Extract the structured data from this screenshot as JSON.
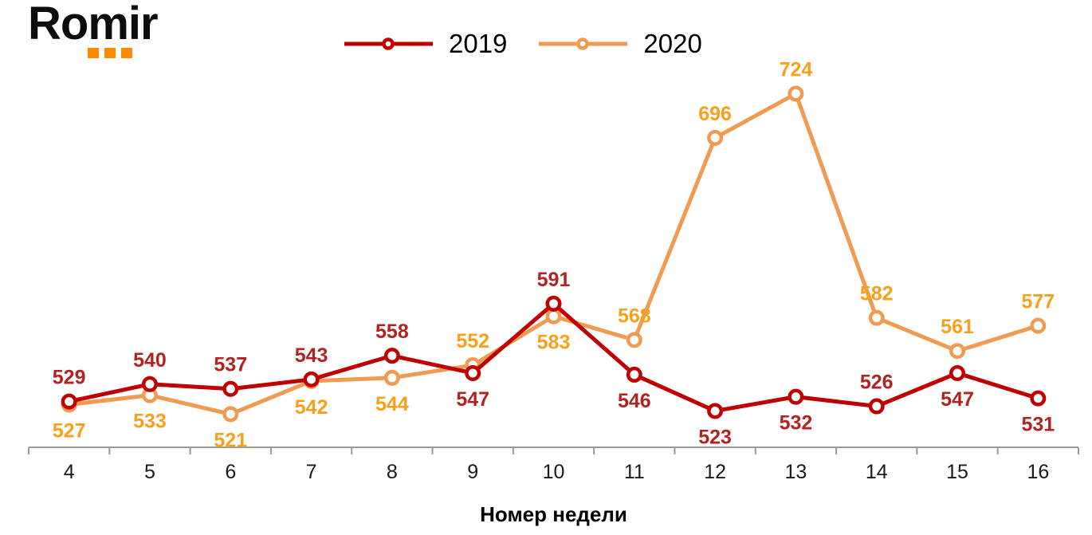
{
  "logo": {
    "text": "Romir",
    "dot_color": "#ff8a00"
  },
  "legend": [
    {
      "label": "2019",
      "line_color": "#C00000"
    },
    {
      "label": "2020",
      "line_color": "#F19A52"
    }
  ],
  "chart_data": {
    "type": "line",
    "title": "",
    "xlabel": "Номер недели",
    "ylabel": "",
    "categories": [
      4,
      5,
      6,
      7,
      8,
      9,
      10,
      11,
      12,
      13,
      14,
      15,
      16
    ],
    "series": [
      {
        "name": "2019",
        "color": "#C00000",
        "label_color": "#B22222",
        "values": [
          529,
          540,
          537,
          543,
          558,
          547,
          591,
          546,
          523,
          532,
          526,
          547,
          531
        ],
        "label_side": [
          "above",
          "above",
          "above",
          "above",
          "above",
          "below",
          "above",
          "below",
          "below",
          "below",
          "above",
          "below",
          "below"
        ]
      },
      {
        "name": "2020",
        "color": "#F19A52",
        "label_color": "#F9A01B",
        "values": [
          527,
          533,
          521,
          542,
          544,
          552,
          583,
          568,
          696,
          724,
          582,
          561,
          577
        ],
        "label_side": [
          "below",
          "below",
          "below",
          "below",
          "below",
          "above",
          "below",
          "above",
          "above",
          "above",
          "above",
          "above",
          "above"
        ]
      }
    ],
    "ylim": [
      500,
      750
    ],
    "grid": false,
    "legend_position": "top",
    "axis_color": "#999999",
    "tick_label_color": "#1a1a1a",
    "marker": "circle-open"
  }
}
